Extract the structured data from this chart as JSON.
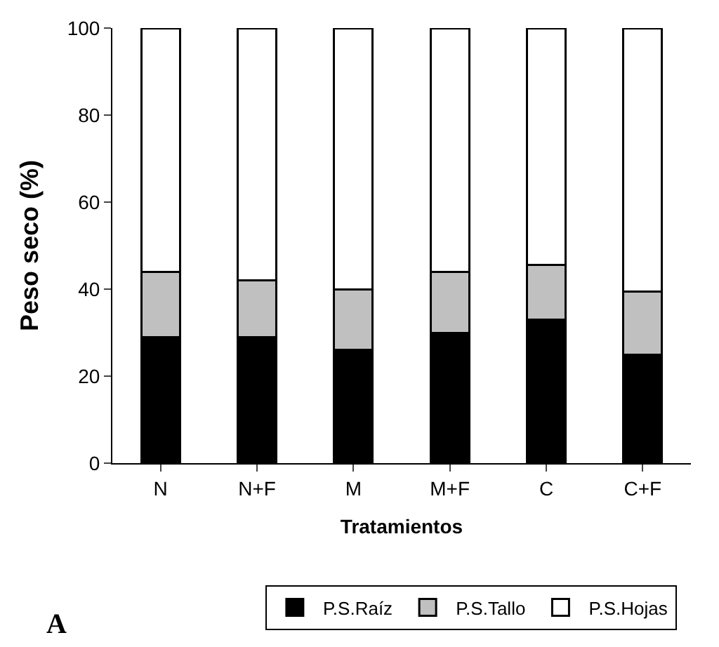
{
  "chart_data": {
    "type": "bar",
    "stacked": true,
    "xlabel": "Tratamientos",
    "ylabel": "Peso seco (%)",
    "categories": [
      "N",
      "N+F",
      "M",
      "M+F",
      "C",
      "C+F"
    ],
    "series": [
      {
        "name": "P.S.Raíz",
        "color": "#000000",
        "values": [
          29,
          29,
          26,
          30,
          33,
          25
        ]
      },
      {
        "name": "P.S.Tallo",
        "color": "#c0c0c0",
        "values": [
          15,
          13,
          14,
          14,
          12.5,
          14.5
        ]
      },
      {
        "name": "P.S.Hojas",
        "color": "#ffffff",
        "values": [
          56,
          58,
          60,
          56,
          54.5,
          60.5
        ]
      }
    ],
    "ylim": [
      0,
      100
    ],
    "yticks": [
      0,
      20,
      40,
      60,
      80,
      100
    ],
    "legend": "bottom",
    "annotations": [
      "A"
    ]
  }
}
